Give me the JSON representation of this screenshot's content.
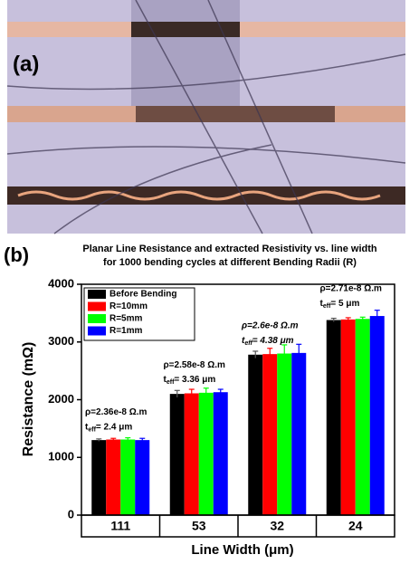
{
  "chart_data": {
    "type": "bar",
    "panel_labels": [
      "(a)",
      "(b)"
    ],
    "title_lines": [
      "Planar Line Resistance and extracted Resistivity vs. line width",
      "for 1000 bending cycles at different Bending Radii (R)"
    ],
    "x_label": "Line Width (μm)",
    "y_label": "Resistance (mΩ)",
    "categories": [
      "111",
      "53",
      "32",
      "24"
    ],
    "series": [
      {
        "name": "Before Bending",
        "color": "#000000",
        "values": [
          1300,
          2100,
          2780,
          3380
        ],
        "errors": [
          20,
          60,
          60,
          30
        ]
      },
      {
        "name": "R=10mm",
        "color": "#ff0000",
        "values": [
          1310,
          2110,
          2790,
          3390
        ],
        "errors": [
          20,
          70,
          100,
          30
        ]
      },
      {
        "name": "R=5mm",
        "color": "#00ff00",
        "values": [
          1310,
          2120,
          2800,
          3400
        ],
        "errors": [
          30,
          80,
          150,
          30
        ]
      },
      {
        "name": "R=1mm",
        "color": "#0000ff",
        "values": [
          1300,
          2130,
          2810,
          3450
        ],
        "errors": [
          30,
          50,
          150,
          100
        ]
      }
    ],
    "annotations": [
      {
        "rho": "ρ=2.36e-8 Ω.m",
        "t": "t",
        "sub": "eff",
        "rest": "= 2.4 μm"
      },
      {
        "rho": "ρ=2.58e-8 Ω.m",
        "t": "t",
        "sub": "eff",
        "rest": "= 3.36 μm"
      },
      {
        "rho": "ρ=2.6e-8 Ω.m",
        "t": "t",
        "sub": "eff",
        "rest": "= 4.38 μm"
      },
      {
        "rho": "ρ=2.71e-8 Ω.m",
        "t": "t",
        "sub": "eff",
        "rest": "= 5 μm"
      }
    ],
    "ylim": [
      0,
      4000
    ],
    "yticks": [
      0,
      1000,
      2000,
      3000,
      4000
    ],
    "legend": "upper left"
  }
}
